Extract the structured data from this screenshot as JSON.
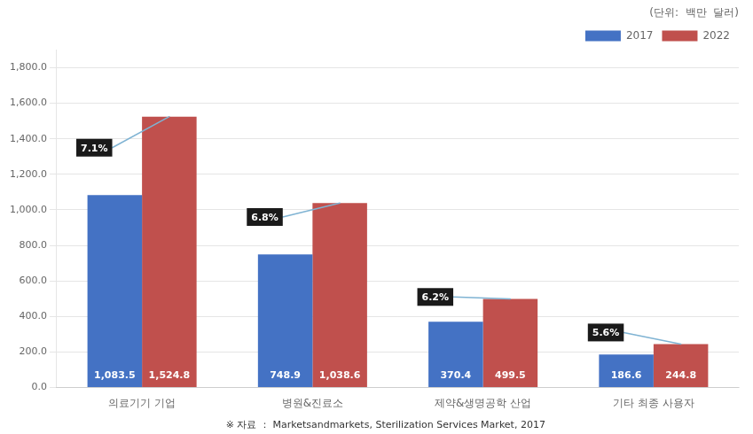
{
  "chart_data": {
    "type": "bar",
    "categories": [
      "의료기기 기업",
      "병원&진료소",
      "제약&생명공학 산업",
      "기타 최종 사용자"
    ],
    "series": [
      {
        "name": "2017",
        "color": "#4472C4",
        "values": [
          1083.5,
          748.9,
          370.4,
          186.6
        ],
        "value_labels": [
          "1,083.5",
          "748.9",
          "370.4",
          "186.6"
        ]
      },
      {
        "name": "2022",
        "color": "#C0504D",
        "values": [
          1524.8,
          1038.6,
          499.5,
          244.8
        ],
        "value_labels": [
          "1,524.8",
          "1,038.6",
          "499.5",
          "244.8"
        ]
      }
    ],
    "data_labels": true,
    "ylim": [
      0,
      1900
    ],
    "yticks": [
      {
        "value": 0,
        "label": "0.0"
      },
      {
        "value": 200,
        "label": "200.0"
      },
      {
        "value": 400,
        "label": "400.0"
      },
      {
        "value": 600,
        "label": "600.0"
      },
      {
        "value": 800,
        "label": "800.0"
      },
      {
        "value": 1000,
        "label": "1,000.0"
      },
      {
        "value": 1200,
        "label": "1,200.0"
      },
      {
        "value": 1400,
        "label": "1,400.0"
      },
      {
        "value": 1600,
        "label": "1,600.0"
      },
      {
        "value": 1800,
        "label": "1,800.0"
      }
    ],
    "grid": true,
    "legend": "upper right",
    "subtitle": "(단위:  백만  달러)",
    "source": "※ 자료 ： Marketsandmarkets, Sterilization Services Market, 2017",
    "annotations": [
      {
        "text": "7.1%",
        "category": "의료기기 기업",
        "series": "2022",
        "y": 1350,
        "color": "#1a1a1a"
      },
      {
        "text": "6.8%",
        "category": "병원&진료소",
        "series": "2022",
        "y": 960,
        "color": "#1a1a1a"
      },
      {
        "text": "6.2%",
        "category": "제약&생명공학 산업",
        "series": "2022",
        "y": 510,
        "color": "#1a1a1a"
      },
      {
        "text": "5.6%",
        "category": "기타 최종 사용자",
        "series": "2022",
        "y": 310,
        "color": "#1a1a1a"
      }
    ]
  }
}
